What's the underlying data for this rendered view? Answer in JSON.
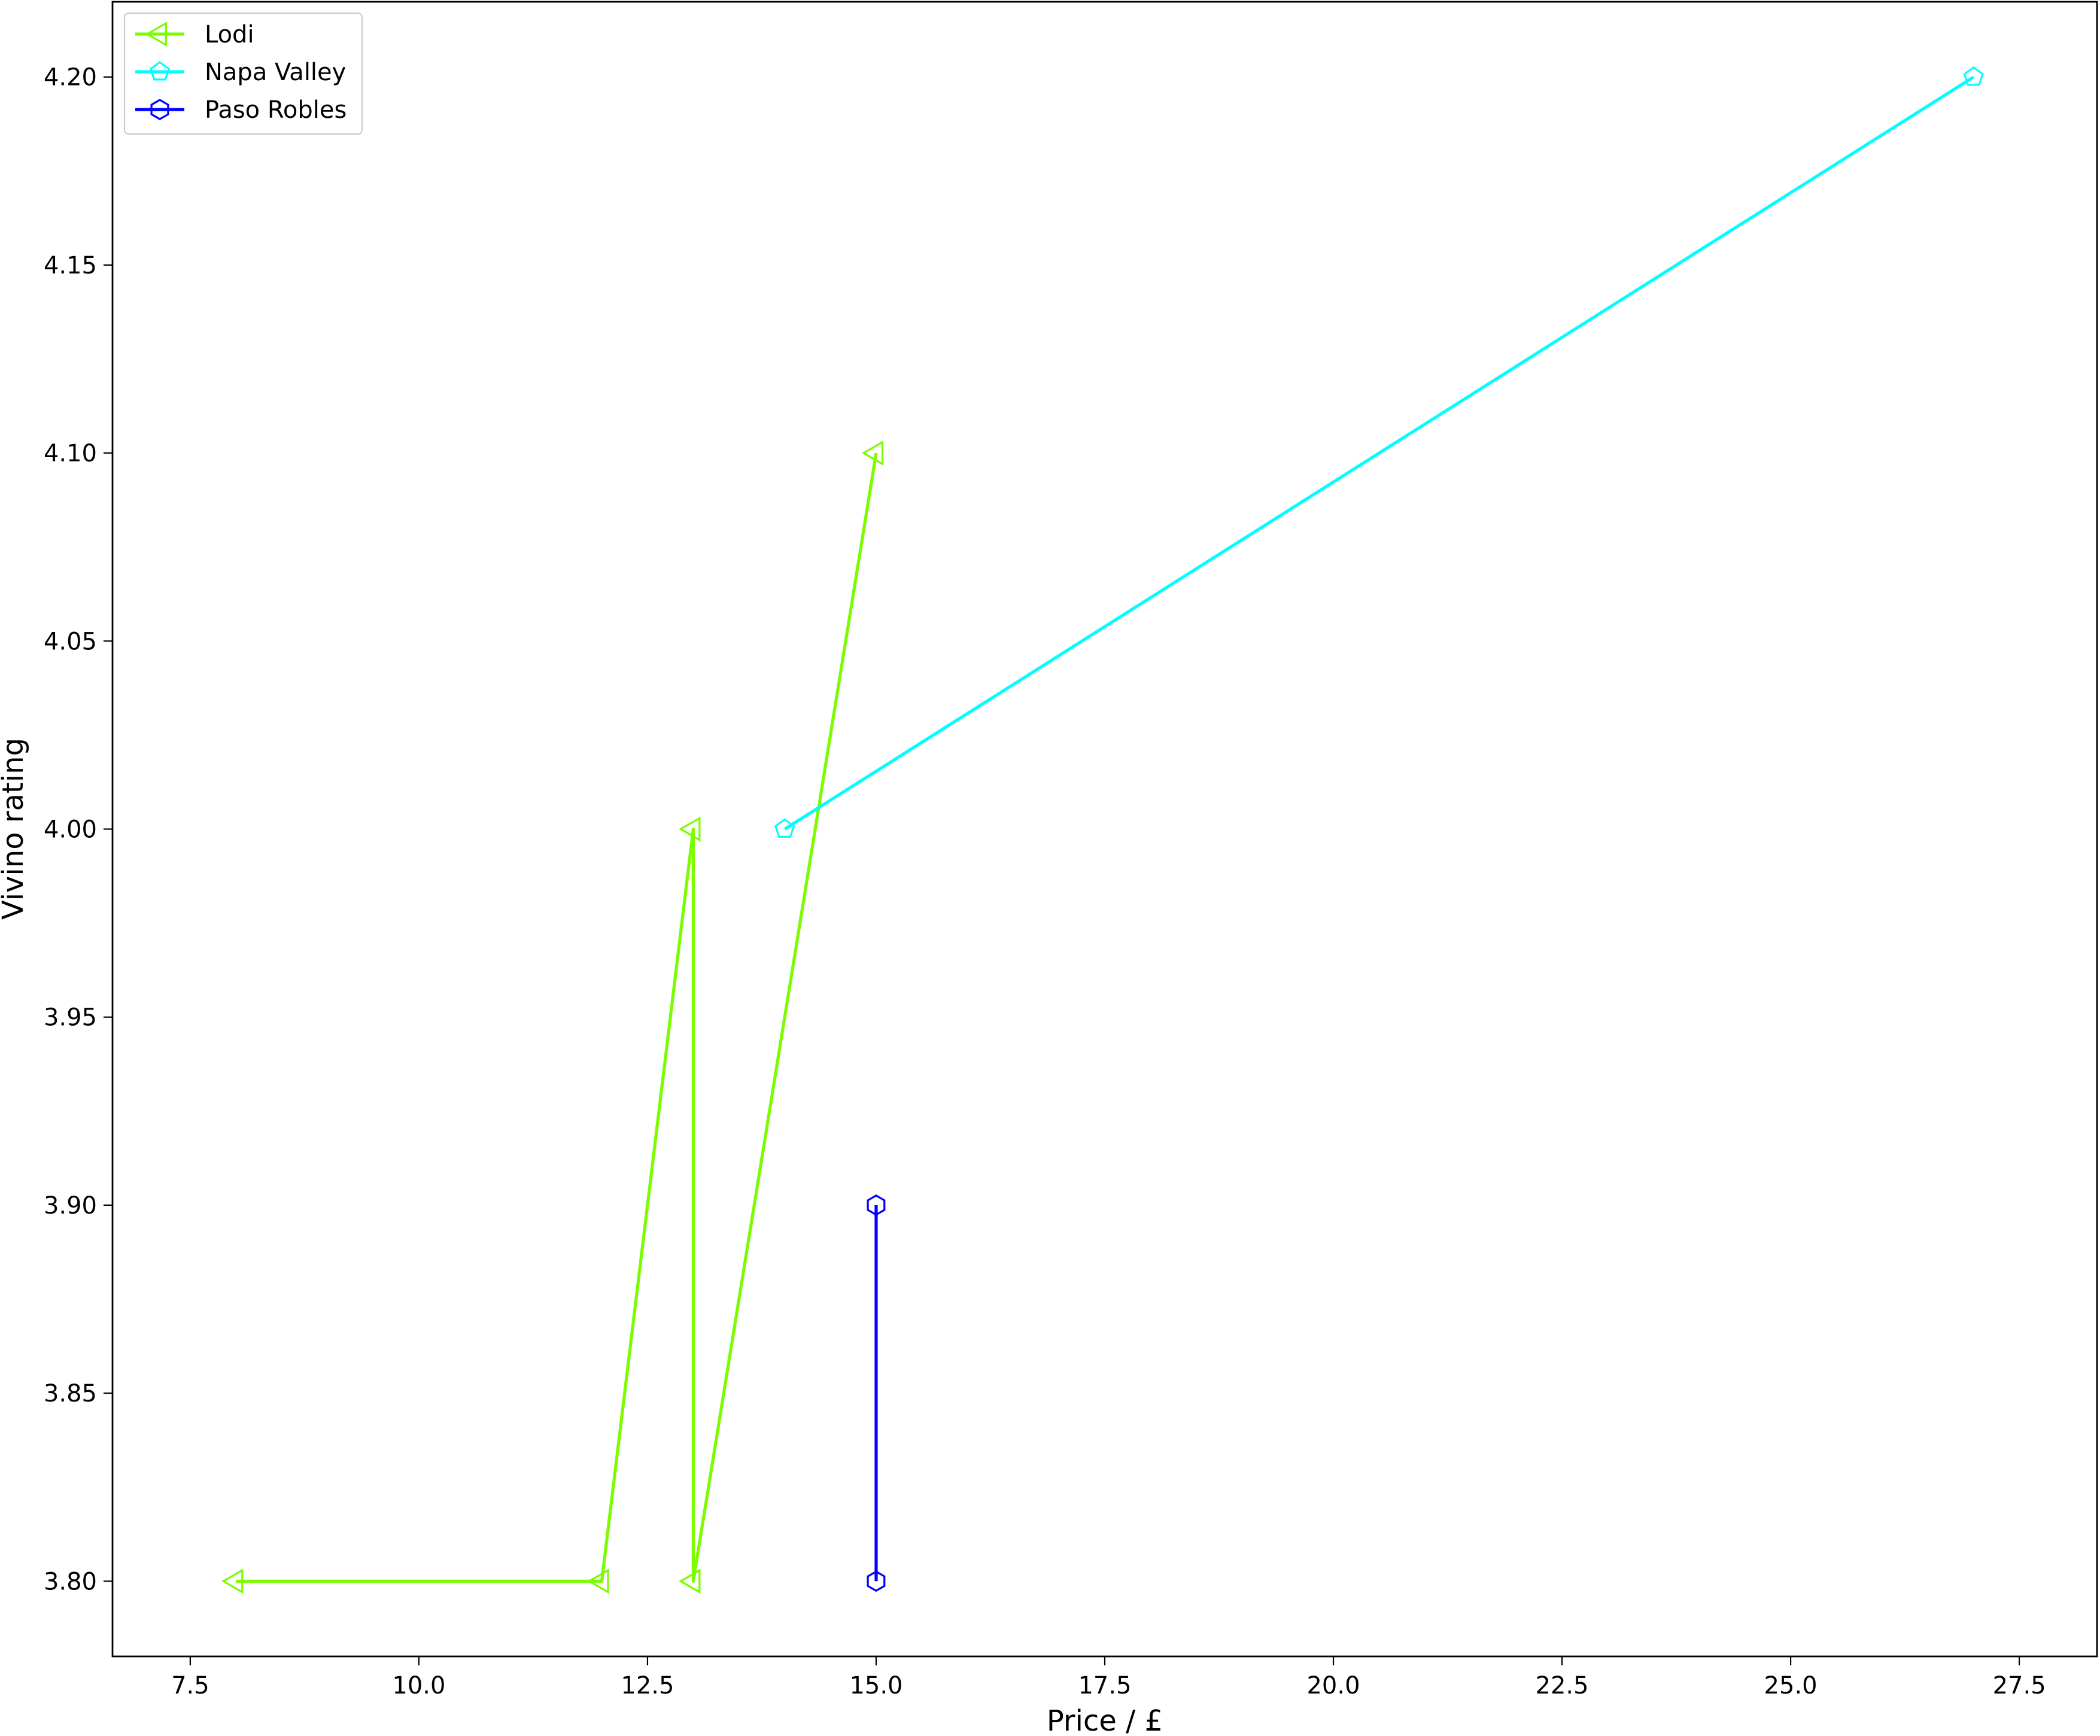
{
  "chart_data": {
    "type": "line",
    "xlabel": "Price / £",
    "ylabel": "Vivino rating",
    "xlim": [
      6.65,
      28.35
    ],
    "ylim": [
      3.78,
      4.22
    ],
    "xticks": [
      "7.5",
      "10.0",
      "12.5",
      "15.0",
      "17.5",
      "20.0",
      "22.5",
      "25.0",
      "27.5"
    ],
    "yticks": [
      "3.80",
      "3.85",
      "3.90",
      "3.95",
      "4.00",
      "4.05",
      "4.10",
      "4.15",
      "4.20"
    ],
    "grid": false,
    "legend_position": "upper-left",
    "series": [
      {
        "name": "Lodi",
        "color": "#7cfc00",
        "marker": "triangle-left",
        "x": [
          8,
          12,
          13,
          13,
          13,
          15
        ],
        "y": [
          3.8,
          3.8,
          4.0,
          3.8,
          3.8,
          4.1
        ]
      },
      {
        "name": "Napa Valley",
        "color": "#00ffff",
        "marker": "pentagon",
        "x": [
          14,
          27
        ],
        "y": [
          4.0,
          4.2
        ]
      },
      {
        "name": "Paso Robles",
        "color": "#0000ff",
        "marker": "hexagon",
        "x": [
          15,
          15
        ],
        "y": [
          3.9,
          3.8
        ]
      }
    ]
  }
}
